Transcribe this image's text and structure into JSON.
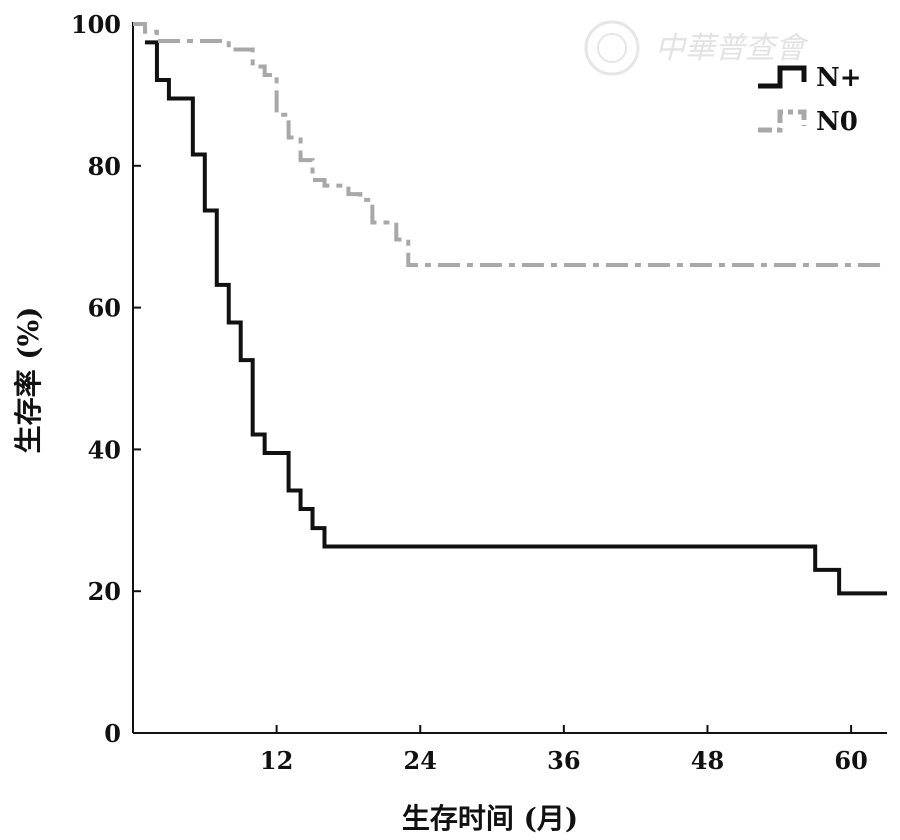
{
  "watermark": "中華普查會",
  "chart_data": {
    "type": "line",
    "step": true,
    "xlabel": "生存时间 (月)",
    "ylabel": "生存率 (%)",
    "xlim": [
      0,
      63
    ],
    "ylim": [
      0,
      100
    ],
    "xticks": [
      12,
      24,
      36,
      48,
      60
    ],
    "yticks": [
      0,
      20,
      40,
      60,
      80,
      100
    ],
    "grid": false,
    "legend_position": "top-right",
    "series": [
      {
        "name": "N+",
        "color": "#111111",
        "style": "solid",
        "x": [
          1,
          2,
          3,
          5,
          6,
          7,
          8,
          9,
          10,
          11,
          13,
          14,
          15,
          16,
          57,
          59,
          63
        ],
        "y": [
          97.4,
          92.1,
          89.5,
          81.6,
          73.7,
          63.2,
          57.9,
          52.6,
          42.1,
          39.5,
          34.2,
          31.6,
          28.9,
          26.3,
          23.0,
          19.7,
          19.7
        ]
      },
      {
        "name": "N0",
        "color": "#a8a8a8",
        "style": "dashdot",
        "x": [
          0,
          1,
          2,
          8,
          10,
          11,
          12,
          13,
          14,
          15,
          16,
          18,
          19,
          20,
          22,
          23,
          63
        ],
        "y": [
          100,
          98.9,
          97.6,
          96.4,
          94.0,
          92.8,
          87.2,
          84.0,
          80.8,
          78.0,
          77.2,
          76.0,
          75.2,
          72.0,
          69.6,
          66.0,
          66.0
        ]
      }
    ]
  }
}
